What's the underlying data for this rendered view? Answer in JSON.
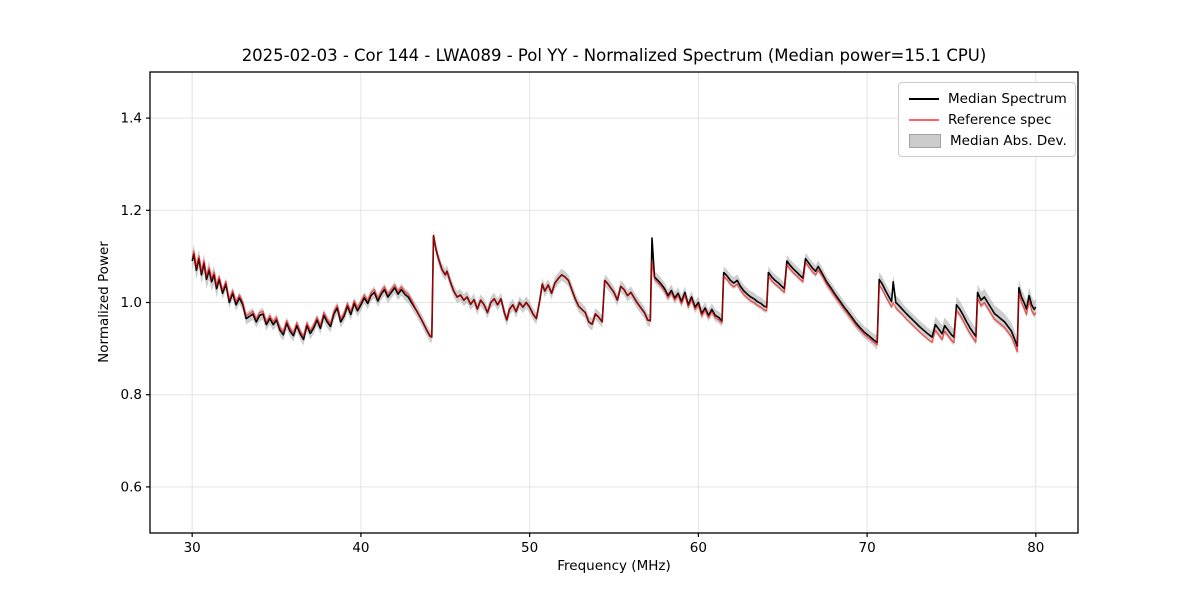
{
  "figure": {
    "title": "2025-02-03 - Cor 144 - LWA089 - Pol YY - Normalized Spectrum (Median power=15.1 CPU)",
    "xlabel": "Frequency (MHz)",
    "ylabel": "Normalized Power",
    "background": "#ffffff",
    "legend": {
      "items": [
        {
          "label": "Median Spectrum",
          "kind": "line",
          "color": "#000000",
          "opacity": 1.0
        },
        {
          "label": "Reference spec",
          "kind": "line",
          "color": "#ff0000",
          "opacity": 0.62
        },
        {
          "label": "Median Abs. Dev.",
          "kind": "patch",
          "fill": "#cccccc",
          "edge": "#a3a3a3"
        }
      ],
      "position": "upper right"
    }
  },
  "chart_data": {
    "type": "line",
    "title": "2025-02-03 - Cor 144 - LWA089 - Pol YY - Normalized Spectrum (Median power=15.1 CPU)",
    "xlabel": "Frequency (MHz)",
    "ylabel": "Normalized Power",
    "xlim": [
      27.5,
      82.5
    ],
    "ylim": [
      0.5,
      1.5
    ],
    "xticks": [
      30,
      40,
      50,
      60,
      70,
      80
    ],
    "xtick_labels": [
      "30",
      "40",
      "50",
      "60",
      "70",
      "80"
    ],
    "yticks": [
      0.6,
      0.8,
      1.0,
      1.2,
      1.4
    ],
    "ytick_labels": [
      "0.6",
      "0.8",
      "1.0",
      "1.2",
      "1.4"
    ],
    "grid": true,
    "grid_color": "#e4e4e4",
    "legend_position": "upper right",
    "median_points": [
      [
        30.0,
        1.09
      ],
      [
        30.1,
        1.105
      ],
      [
        30.25,
        1.07
      ],
      [
        30.4,
        1.095
      ],
      [
        30.55,
        1.06
      ],
      [
        30.7,
        1.085
      ],
      [
        30.85,
        1.05
      ],
      [
        31.0,
        1.07
      ],
      [
        31.15,
        1.045
      ],
      [
        31.3,
        1.06
      ],
      [
        31.45,
        1.03
      ],
      [
        31.6,
        1.05
      ],
      [
        31.8,
        1.02
      ],
      [
        32.0,
        1.04
      ],
      [
        32.2,
        1.0
      ],
      [
        32.4,
        1.02
      ],
      [
        32.6,
        0.995
      ],
      [
        32.8,
        1.01
      ],
      [
        33.0,
        0.995
      ],
      [
        33.2,
        0.965
      ],
      [
        33.4,
        0.97
      ],
      [
        33.6,
        0.975
      ],
      [
        33.8,
        0.958
      ],
      [
        34.0,
        0.972
      ],
      [
        34.2,
        0.975
      ],
      [
        34.4,
        0.952
      ],
      [
        34.6,
        0.965
      ],
      [
        34.8,
        0.952
      ],
      [
        35.0,
        0.962
      ],
      [
        35.2,
        0.94
      ],
      [
        35.4,
        0.93
      ],
      [
        35.6,
        0.955
      ],
      [
        35.8,
        0.938
      ],
      [
        36.0,
        0.928
      ],
      [
        36.2,
        0.95
      ],
      [
        36.4,
        0.932
      ],
      [
        36.6,
        0.92
      ],
      [
        36.8,
        0.95
      ],
      [
        37.0,
        0.933
      ],
      [
        37.2,
        0.945
      ],
      [
        37.4,
        0.962
      ],
      [
        37.6,
        0.944
      ],
      [
        37.8,
        0.972
      ],
      [
        38.0,
        0.958
      ],
      [
        38.2,
        0.948
      ],
      [
        38.4,
        0.975
      ],
      [
        38.6,
        0.988
      ],
      [
        38.8,
        0.958
      ],
      [
        39.0,
        0.97
      ],
      [
        39.2,
        0.992
      ],
      [
        39.4,
        0.974
      ],
      [
        39.6,
        0.998
      ],
      [
        39.8,
        0.982
      ],
      [
        40.0,
        0.995
      ],
      [
        40.2,
        1.01
      ],
      [
        40.4,
        0.998
      ],
      [
        40.6,
        1.015
      ],
      [
        40.8,
        1.022
      ],
      [
        41.0,
        1.003
      ],
      [
        41.2,
        1.018
      ],
      [
        41.4,
        1.028
      ],
      [
        41.6,
        1.012
      ],
      [
        41.8,
        1.022
      ],
      [
        42.0,
        1.032
      ],
      [
        42.2,
        1.018
      ],
      [
        42.4,
        1.028
      ],
      [
        42.6,
        1.018
      ],
      [
        42.8,
        1.012
      ],
      [
        43.0,
        1.0
      ],
      [
        43.3,
        0.982
      ],
      [
        43.6,
        0.962
      ],
      [
        43.9,
        0.94
      ],
      [
        44.1,
        0.927
      ],
      [
        44.2,
        0.925
      ],
      [
        44.3,
        1.145
      ],
      [
        44.45,
        1.115
      ],
      [
        44.6,
        1.095
      ],
      [
        44.8,
        1.072
      ],
      [
        45.0,
        1.06
      ],
      [
        45.1,
        1.068
      ],
      [
        45.3,
        1.045
      ],
      [
        45.5,
        1.025
      ],
      [
        45.7,
        1.012
      ],
      [
        45.9,
        1.016
      ],
      [
        46.1,
        1.005
      ],
      [
        46.3,
        1.012
      ],
      [
        46.5,
        0.996
      ],
      [
        46.7,
        1.006
      ],
      [
        46.9,
        0.986
      ],
      [
        47.1,
        1.005
      ],
      [
        47.3,
        0.995
      ],
      [
        47.5,
        0.978
      ],
      [
        47.7,
        1.0
      ],
      [
        47.9,
        1.008
      ],
      [
        48.1,
        0.995
      ],
      [
        48.3,
        1.008
      ],
      [
        48.5,
        0.978
      ],
      [
        48.65,
        0.962
      ],
      [
        48.8,
        0.985
      ],
      [
        49.0,
        0.995
      ],
      [
        49.2,
        0.98
      ],
      [
        49.4,
        1.0
      ],
      [
        49.6,
        0.99
      ],
      [
        49.8,
        1.0
      ],
      [
        50.0,
        0.99
      ],
      [
        50.2,
        0.975
      ],
      [
        50.4,
        0.965
      ],
      [
        50.6,
        1.005
      ],
      [
        50.75,
        1.04
      ],
      [
        50.9,
        1.025
      ],
      [
        51.1,
        1.038
      ],
      [
        51.3,
        1.02
      ],
      [
        51.5,
        1.042
      ],
      [
        51.7,
        1.052
      ],
      [
        51.9,
        1.06
      ],
      [
        52.1,
        1.055
      ],
      [
        52.3,
        1.048
      ],
      [
        52.5,
        1.028
      ],
      [
        52.7,
        1.008
      ],
      [
        52.9,
        0.992
      ],
      [
        53.1,
        0.985
      ],
      [
        53.3,
        0.978
      ],
      [
        53.5,
        0.958
      ],
      [
        53.7,
        0.953
      ],
      [
        53.9,
        0.975
      ],
      [
        54.1,
        0.968
      ],
      [
        54.3,
        0.958
      ],
      [
        54.45,
        1.048
      ],
      [
        54.6,
        1.042
      ],
      [
        54.8,
        1.032
      ],
      [
        55.0,
        1.022
      ],
      [
        55.2,
        1.005
      ],
      [
        55.4,
        1.035
      ],
      [
        55.6,
        1.028
      ],
      [
        55.8,
        1.015
      ],
      [
        56.0,
        1.022
      ],
      [
        56.2,
        1.01
      ],
      [
        56.4,
        0.998
      ],
      [
        56.6,
        0.988
      ],
      [
        56.8,
        0.978
      ],
      [
        57.0,
        0.962
      ],
      [
        57.15,
        0.96
      ],
      [
        57.25,
        1.14
      ],
      [
        57.4,
        1.055
      ],
      [
        57.6,
        1.048
      ],
      [
        57.8,
        1.04
      ],
      [
        58.0,
        1.03
      ],
      [
        58.2,
        1.015
      ],
      [
        58.4,
        1.026
      ],
      [
        58.6,
        1.01
      ],
      [
        58.8,
        1.02
      ],
      [
        59.0,
        1.002
      ],
      [
        59.2,
        1.022
      ],
      [
        59.4,
        0.995
      ],
      [
        59.6,
        1.012
      ],
      [
        59.8,
        0.99
      ],
      [
        60.0,
        1.0
      ],
      [
        60.2,
        0.976
      ],
      [
        60.4,
        0.988
      ],
      [
        60.6,
        0.972
      ],
      [
        60.8,
        0.985
      ],
      [
        61.0,
        0.972
      ],
      [
        61.2,
        0.968
      ],
      [
        61.4,
        0.96
      ],
      [
        61.5,
        1.065
      ],
      [
        61.7,
        1.058
      ],
      [
        61.9,
        1.048
      ],
      [
        62.1,
        1.042
      ],
      [
        62.3,
        1.048
      ],
      [
        62.5,
        1.035
      ],
      [
        62.7,
        1.025
      ],
      [
        62.9,
        1.018
      ],
      [
        63.1,
        1.012
      ],
      [
        63.3,
        1.008
      ],
      [
        63.5,
        1.002
      ],
      [
        63.7,
        0.998
      ],
      [
        63.9,
        0.992
      ],
      [
        64.05,
        0.99
      ],
      [
        64.15,
        1.065
      ],
      [
        64.35,
        1.055
      ],
      [
        64.55,
        1.048
      ],
      [
        64.75,
        1.042
      ],
      [
        64.95,
        1.035
      ],
      [
        65.1,
        1.03
      ],
      [
        65.25,
        1.09
      ],
      [
        65.45,
        1.08
      ],
      [
        65.65,
        1.072
      ],
      [
        65.85,
        1.065
      ],
      [
        66.05,
        1.058
      ],
      [
        66.2,
        1.053
      ],
      [
        66.35,
        1.095
      ],
      [
        66.55,
        1.085
      ],
      [
        66.75,
        1.075
      ],
      [
        66.95,
        1.068
      ],
      [
        67.1,
        1.078
      ],
      [
        67.35,
        1.062
      ],
      [
        67.6,
        1.045
      ],
      [
        67.85,
        1.032
      ],
      [
        68.1,
        1.018
      ],
      [
        68.35,
        1.005
      ],
      [
        68.6,
        0.992
      ],
      [
        68.85,
        0.98
      ],
      [
        69.1,
        0.968
      ],
      [
        69.35,
        0.955
      ],
      [
        69.6,
        0.945
      ],
      [
        69.85,
        0.935
      ],
      [
        70.1,
        0.928
      ],
      [
        70.35,
        0.92
      ],
      [
        70.6,
        0.913
      ],
      [
        70.72,
        1.05
      ],
      [
        70.9,
        1.04
      ],
      [
        71.1,
        1.025
      ],
      [
        71.3,
        1.012
      ],
      [
        71.45,
        1.002
      ],
      [
        71.55,
        1.045
      ],
      [
        71.7,
        1.0
      ],
      [
        71.9,
        0.993
      ],
      [
        72.1,
        0.985
      ],
      [
        72.35,
        0.975
      ],
      [
        72.6,
        0.966
      ],
      [
        72.85,
        0.957
      ],
      [
        73.1,
        0.948
      ],
      [
        73.35,
        0.94
      ],
      [
        73.6,
        0.932
      ],
      [
        73.85,
        0.925
      ],
      [
        74.05,
        0.952
      ],
      [
        74.25,
        0.942
      ],
      [
        74.45,
        0.932
      ],
      [
        74.6,
        0.95
      ],
      [
        74.8,
        0.94
      ],
      [
        75.0,
        0.93
      ],
      [
        75.15,
        0.925
      ],
      [
        75.3,
        0.995
      ],
      [
        75.5,
        0.985
      ],
      [
        75.7,
        0.972
      ],
      [
        75.9,
        0.958
      ],
      [
        76.1,
        0.945
      ],
      [
        76.3,
        0.934
      ],
      [
        76.45,
        0.926
      ],
      [
        76.55,
        1.022
      ],
      [
        76.75,
        1.005
      ],
      [
        76.95,
        1.012
      ],
      [
        77.15,
        1.0
      ],
      [
        77.35,
        0.988
      ],
      [
        77.55,
        0.976
      ],
      [
        77.75,
        0.97
      ],
      [
        77.95,
        0.964
      ],
      [
        78.15,
        0.958
      ],
      [
        78.35,
        0.948
      ],
      [
        78.55,
        0.938
      ],
      [
        78.75,
        0.92
      ],
      [
        78.9,
        0.905
      ],
      [
        79.0,
        1.032
      ],
      [
        79.15,
        1.012
      ],
      [
        79.3,
        1.0
      ],
      [
        79.45,
        0.986
      ],
      [
        79.6,
        1.015
      ],
      [
        79.75,
        0.995
      ],
      [
        79.9,
        0.985
      ],
      [
        80.0,
        0.99
      ]
    ],
    "series_style": {
      "median": {
        "name": "Median Spectrum",
        "color": "#000000",
        "width": 1.6,
        "opacity": 1.0
      },
      "reference": {
        "name": "Reference spec",
        "color": "#ff0000",
        "width": 1.4,
        "opacity": 0.62
      }
    },
    "reference_offset_regions": [
      [
        29.9,
        43.05,
        0.006
      ],
      [
        57.3,
        61.45,
        -0.005
      ],
      [
        61.45,
        67.2,
        -0.008
      ],
      [
        67.2,
        70.65,
        -0.005
      ],
      [
        70.65,
        80.1,
        -0.012
      ]
    ],
    "reference_overrides": [
      [
        57.25,
        1.09
      ],
      [
        71.55,
        1.0
      ]
    ],
    "mad_band": {
      "name": "Median Abs. Dev.",
      "color": "#8a8a8a",
      "opacity": 0.42,
      "half_width_default": 0.013,
      "half_width_regions": [
        [
          29.9,
          31.5,
          0.02
        ],
        [
          70.6,
          72.0,
          0.016
        ],
        [
          74.0,
          80.1,
          0.018
        ]
      ]
    }
  },
  "layout_text": {}
}
